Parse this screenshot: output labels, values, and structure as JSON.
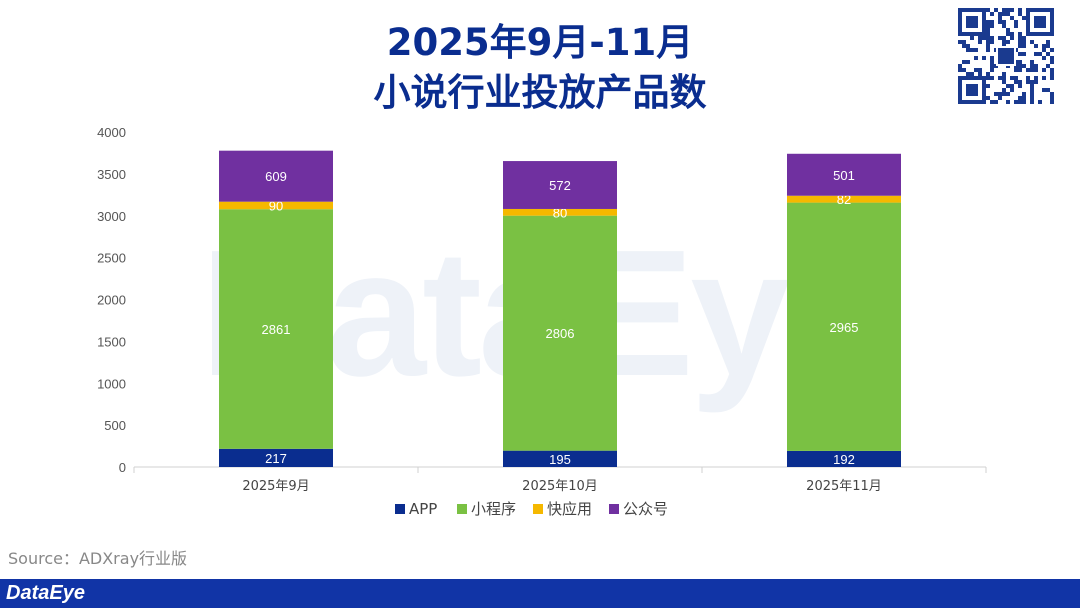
{
  "title": {
    "line1": "2025年9月-11月",
    "line2": "小说行业投放产品数"
  },
  "source": "Source：ADXray行业版",
  "brand": "DataEye",
  "watermark": "DataEye",
  "colors": {
    "title": "#0a2d8f",
    "APP": "#0a2d8f",
    "小程序": "#7ac143",
    "快应用": "#f5b800",
    "公众号": "#7030a0",
    "footer": "#1134a6"
  },
  "chart_data": {
    "type": "bar",
    "stacked": true,
    "categories": [
      "2025年9月",
      "2025年10月",
      "2025年11月"
    ],
    "series": [
      {
        "name": "APP",
        "values": [
          217,
          195,
          192
        ]
      },
      {
        "name": "小程序",
        "values": [
          2861,
          2806,
          2965
        ]
      },
      {
        "name": "快应用",
        "values": [
          90,
          80,
          82
        ]
      },
      {
        "name": "公众号",
        "values": [
          609,
          572,
          501
        ]
      }
    ],
    "ylim": [
      0,
      4000
    ],
    "yticks": [
      0,
      500,
      1000,
      1500,
      2000,
      2500,
      3000,
      3500,
      4000
    ],
    "grid": false,
    "legend": "bottom"
  }
}
